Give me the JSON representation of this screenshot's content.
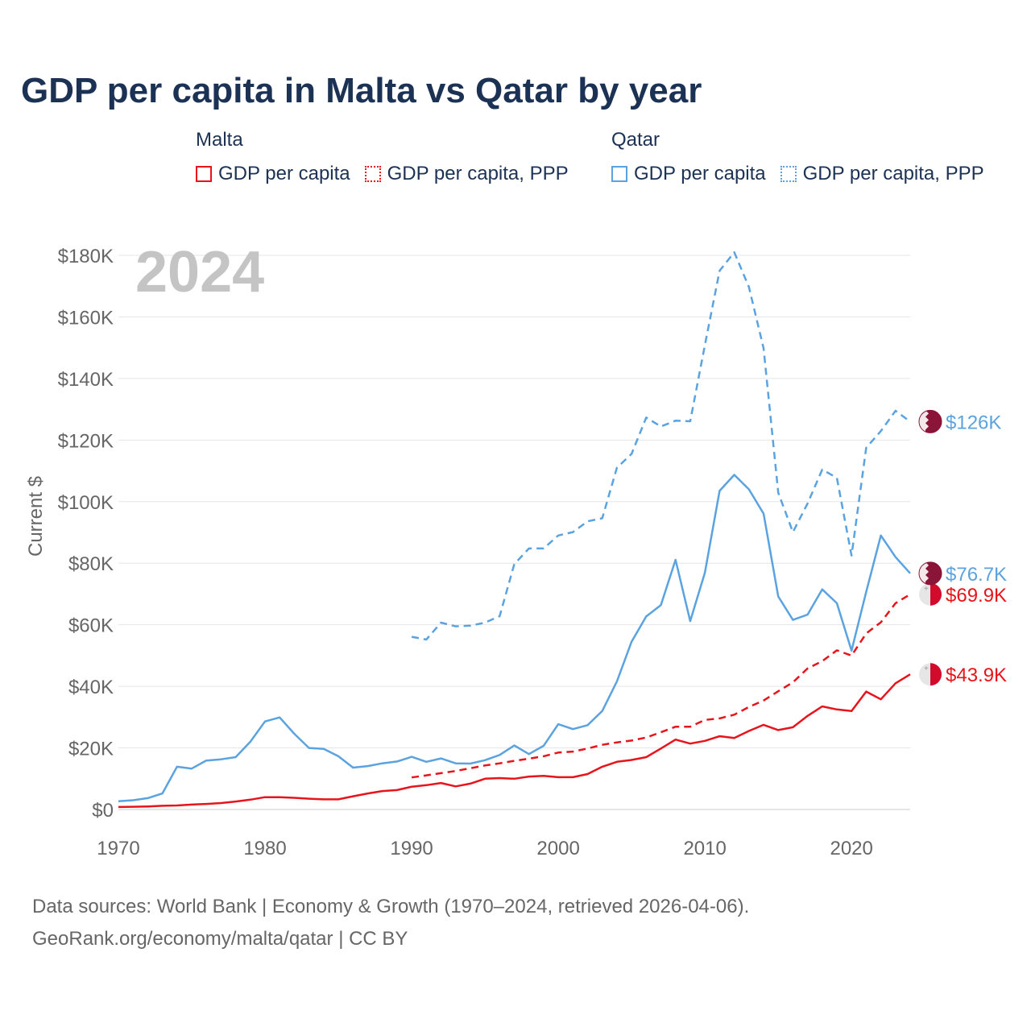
{
  "title": "GDP per capita in Malta vs Qatar by year",
  "year_badge": "2024",
  "legend": {
    "malta": {
      "name": "Malta",
      "items": [
        "GDP per capita",
        "GDP per capita, PPP"
      ]
    },
    "qatar": {
      "name": "Qatar",
      "items": [
        "GDP per capita",
        "GDP per capita, PPP"
      ]
    }
  },
  "source_lines": [
    "Data sources: World Bank | Economy & Growth (1970–2024, retrieved 2026-04-06).",
    "GeoRank.org/economy/malta/qatar | CC BY"
  ],
  "colors": {
    "malta": "#e8141b",
    "qatar": "#5ba3e0",
    "title": "#1c3254",
    "grid": "#e6e6e6",
    "axis_text": "#666666",
    "badge": "#c4c4c4"
  },
  "chart_data": {
    "type": "line",
    "title": "GDP per capita in Malta vs Qatar by year",
    "xlabel": "",
    "ylabel": "Current $",
    "xlim": [
      1970,
      2024
    ],
    "ylim": [
      0,
      180000
    ],
    "x_ticks": [
      1970,
      1980,
      1990,
      2000,
      2010,
      2020
    ],
    "x_tick_labels": [
      "1970",
      "1980",
      "1990",
      "2000",
      "2010",
      "2020"
    ],
    "y_ticks": [
      0,
      20000,
      40000,
      60000,
      80000,
      100000,
      120000,
      140000,
      160000,
      180000
    ],
    "y_tick_labels": [
      "$0",
      "$20K",
      "$40K",
      "$60K",
      "$80K",
      "$100K",
      "$120K",
      "$140K",
      "$160K",
      "$180K"
    ],
    "series": [
      {
        "name": "Malta GDP per capita",
        "country": "malta",
        "style": "solid",
        "end_label": "$43.9K",
        "x": [
          1970,
          1971,
          1972,
          1973,
          1974,
          1975,
          1976,
          1977,
          1978,
          1979,
          1980,
          1981,
          1982,
          1983,
          1984,
          1985,
          1986,
          1987,
          1988,
          1989,
          1990,
          1991,
          1992,
          1993,
          1994,
          1995,
          1996,
          1997,
          1998,
          1999,
          2000,
          2001,
          2002,
          2003,
          2004,
          2005,
          2006,
          2007,
          2008,
          2009,
          2010,
          2011,
          2012,
          2013,
          2014,
          2015,
          2016,
          2017,
          2018,
          2019,
          2020,
          2021,
          2022,
          2023,
          2024
        ],
        "values": [
          800,
          900,
          1000,
          1200,
          1300,
          1600,
          1800,
          2100,
          2600,
          3200,
          4000,
          4000,
          3800,
          3500,
          3300,
          3300,
          4300,
          5200,
          6000,
          6300,
          7400,
          7900,
          8600,
          7500,
          8400,
          10000,
          10200,
          10000,
          10700,
          10900,
          10500,
          10500,
          11500,
          13900,
          15500,
          16100,
          17000,
          19800,
          22700,
          21400,
          22300,
          23800,
          23200,
          25500,
          27500,
          25800,
          26700,
          30400,
          33500,
          32500,
          32000,
          38300,
          35800,
          41000,
          43900
        ]
      },
      {
        "name": "Malta GDP per capita, PPP",
        "country": "malta",
        "style": "dashed",
        "end_label": "$69.9K",
        "x": [
          1990,
          1991,
          1992,
          1993,
          1994,
          1995,
          1996,
          1997,
          1998,
          1999,
          2000,
          2001,
          2002,
          2003,
          2004,
          2005,
          2006,
          2007,
          2008,
          2009,
          2010,
          2011,
          2012,
          2013,
          2014,
          2015,
          2016,
          2017,
          2018,
          2019,
          2020,
          2021,
          2022,
          2023,
          2024
        ],
        "values": [
          10400,
          11100,
          11800,
          12500,
          13400,
          14300,
          15000,
          15800,
          16500,
          17300,
          18500,
          18800,
          19800,
          21000,
          21800,
          22400,
          23400,
          25100,
          26900,
          26900,
          29100,
          29600,
          30800,
          33300,
          35400,
          38400,
          41300,
          45800,
          48200,
          51700,
          50000,
          57200,
          60800,
          67000,
          69900
        ]
      },
      {
        "name": "Qatar GDP per capita",
        "country": "qatar",
        "style": "solid",
        "end_label": "$76.7K",
        "x": [
          1970,
          1971,
          1972,
          1973,
          1974,
          1975,
          1976,
          1977,
          1978,
          1979,
          1980,
          1981,
          1982,
          1983,
          1984,
          1985,
          1986,
          1987,
          1988,
          1989,
          1990,
          1991,
          1992,
          1993,
          1994,
          1995,
          1996,
          1997,
          1998,
          1999,
          2000,
          2001,
          2002,
          2003,
          2004,
          2005,
          2006,
          2007,
          2008,
          2009,
          2010,
          2011,
          2012,
          2013,
          2014,
          2015,
          2016,
          2017,
          2018,
          2019,
          2020,
          2021,
          2022,
          2023,
          2024
        ],
        "values": [
          2700,
          3000,
          3700,
          5200,
          13900,
          13300,
          15900,
          16300,
          17000,
          22000,
          28600,
          29900,
          24600,
          20000,
          19700,
          17300,
          13600,
          14100,
          15000,
          15600,
          17100,
          15500,
          16600,
          15000,
          14900,
          16000,
          17700,
          20800,
          18000,
          20700,
          27700,
          26100,
          27400,
          32000,
          41600,
          54500,
          62700,
          66400,
          81100,
          61200,
          76900,
          103500,
          108700,
          104000,
          96100,
          69200,
          61600,
          63300,
          71500,
          67000,
          51600,
          70700,
          89000,
          82000,
          76700
        ]
      },
      {
        "name": "Qatar GDP per capita, PPP",
        "country": "qatar",
        "style": "dashed",
        "end_label": "$126K",
        "x": [
          1990,
          1991,
          1992,
          1993,
          1994,
          1995,
          1996,
          1997,
          1998,
          1999,
          2000,
          2001,
          2002,
          2003,
          2004,
          2005,
          2006,
          2007,
          2008,
          2009,
          2010,
          2011,
          2012,
          2013,
          2014,
          2015,
          2016,
          2017,
          2018,
          2019,
          2020,
          2021,
          2022,
          2023,
          2024
        ],
        "values": [
          56100,
          55200,
          60700,
          59500,
          59700,
          60700,
          62800,
          79700,
          84800,
          84800,
          89000,
          90100,
          93600,
          94600,
          111000,
          115500,
          127300,
          124400,
          126300,
          126100,
          150800,
          175000,
          181000,
          169700,
          149800,
          102900,
          90100,
          99400,
          110400,
          107700,
          82500,
          117500,
          122900,
          129500,
          126000
        ]
      }
    ]
  }
}
